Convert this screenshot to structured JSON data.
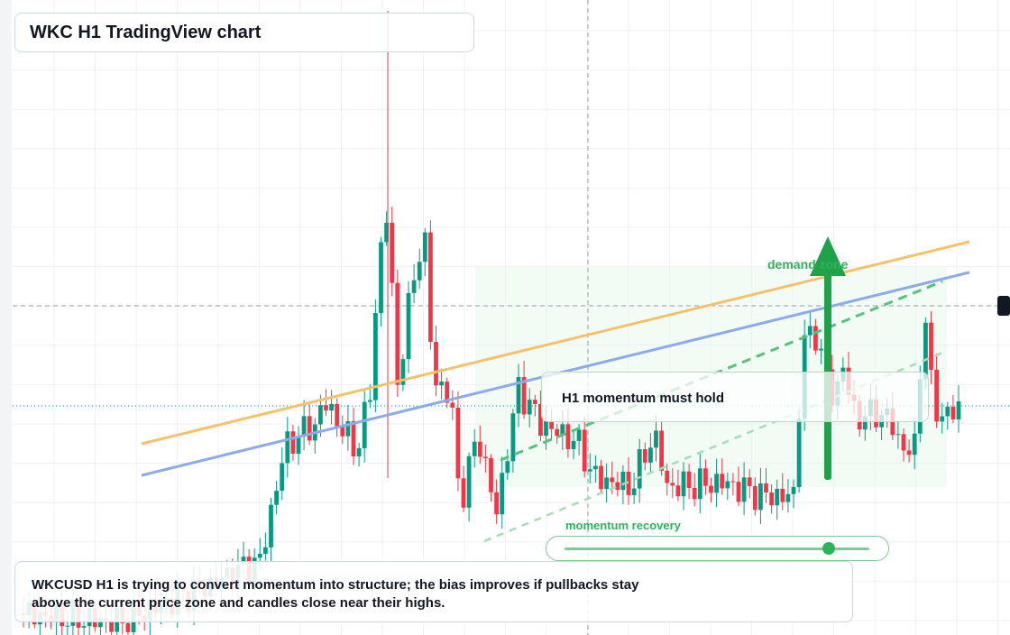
{
  "header": {
    "title": "WKC H1 TradingView chart"
  },
  "annotations": {
    "zone_label": "demand zone",
    "hold_label": "H1 momentum must hold",
    "slider_label": "momentum recovery"
  },
  "summary": {
    "text": "WKCUSD H1 is trying to convert momentum into structure; the bias improves if pullbacks stay above the current price zone and candles close near their highs."
  }
}
